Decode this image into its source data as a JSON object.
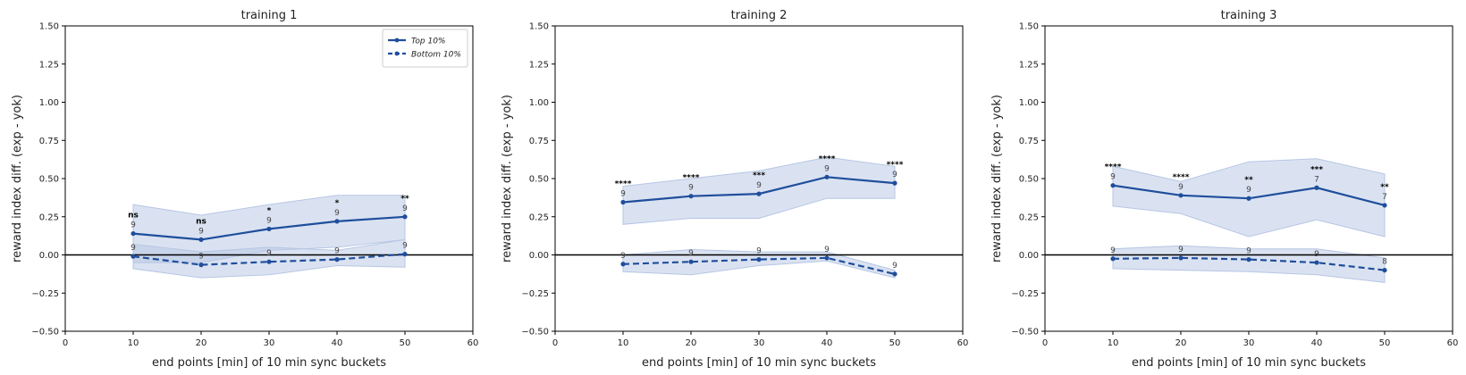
{
  "chart_data": [
    {
      "type": "line",
      "title": "training 1",
      "xlabel": "end points [min] of 10 min sync buckets",
      "ylabel": "reward index diff. (exp - yok)",
      "xlim": [
        0,
        60
      ],
      "ylim": [
        -0.5,
        1.5
      ],
      "xticks": [
        0,
        10,
        20,
        30,
        40,
        50,
        60
      ],
      "yticks": [
        -0.5,
        -0.25,
        0.0,
        0.25,
        0.5,
        0.75,
        1.0,
        1.25,
        1.5
      ],
      "ytick_labels": [
        "−0.50",
        "−0.25",
        "0.00",
        "0.25",
        "0.50",
        "0.75",
        "1.00",
        "1.25",
        "1.50"
      ],
      "legend": "top-right",
      "zero_line": true,
      "series": [
        {
          "name": "Top 10%",
          "style": "solid",
          "x": [
            10,
            20,
            30,
            40,
            50
          ],
          "y": [
            0.14,
            0.1,
            0.17,
            0.22,
            0.25
          ],
          "ci_low": [
            -0.05,
            -0.05,
            0.03,
            0.05,
            0.1
          ],
          "ci_high": [
            0.33,
            0.26,
            0.33,
            0.39,
            0.39
          ],
          "n": [
            "9",
            "9",
            "9",
            "9",
            "9"
          ],
          "sig": [
            "ns",
            "ns",
            "*",
            "*",
            "**"
          ]
        },
        {
          "name": "Bottom 10%",
          "style": "dashed",
          "x": [
            10,
            20,
            30,
            40,
            50
          ],
          "y": [
            -0.01,
            -0.065,
            -0.045,
            -0.03,
            0.005
          ],
          "ci_low": [
            -0.09,
            -0.15,
            -0.13,
            -0.07,
            -0.08
          ],
          "ci_high": [
            0.07,
            0.02,
            0.05,
            0.03,
            0.1
          ],
          "n": [
            "9",
            "9",
            "9",
            "9",
            "9"
          ]
        }
      ]
    },
    {
      "type": "line",
      "title": "training 2",
      "xlabel": "end points [min] of 10 min sync buckets",
      "ylabel": "reward index diff. (exp - yok)",
      "xlim": [
        0,
        60
      ],
      "ylim": [
        -0.5,
        1.5
      ],
      "xticks": [
        0,
        10,
        20,
        30,
        40,
        50,
        60
      ],
      "yticks": [
        -0.5,
        -0.25,
        0.0,
        0.25,
        0.5,
        0.75,
        1.0,
        1.25,
        1.5
      ],
      "ytick_labels": [
        "−0.50",
        "−0.25",
        "0.00",
        "0.25",
        "0.50",
        "0.75",
        "1.00",
        "1.25",
        "1.50"
      ],
      "zero_line": true,
      "series": [
        {
          "style": "solid",
          "x": [
            10,
            20,
            30,
            40,
            50
          ],
          "y": [
            0.345,
            0.385,
            0.4,
            0.51,
            0.47
          ],
          "ci_low": [
            0.2,
            0.24,
            0.24,
            0.37,
            0.37
          ],
          "ci_high": [
            0.45,
            0.5,
            0.55,
            0.64,
            0.58
          ],
          "n": [
            "9",
            "9",
            "9",
            "9",
            "9"
          ],
          "sig": [
            "****",
            "****",
            "***",
            "****",
            "****"
          ]
        },
        {
          "style": "dashed",
          "x": [
            10,
            20,
            30,
            40,
            50
          ],
          "y": [
            -0.06,
            -0.045,
            -0.03,
            -0.02,
            -0.125
          ],
          "ci_low": [
            -0.11,
            -0.13,
            -0.07,
            -0.04,
            -0.15
          ],
          "ci_high": [
            0.0,
            0.035,
            0.02,
            0.02,
            -0.1
          ],
          "n": [
            "9",
            "9",
            "9",
            "9",
            "9"
          ]
        }
      ]
    },
    {
      "type": "line",
      "title": "training 3",
      "xlabel": "end points [min] of 10 min sync buckets",
      "ylabel": "reward index diff. (exp - yok)",
      "xlim": [
        0,
        60
      ],
      "ylim": [
        -0.5,
        1.5
      ],
      "xticks": [
        0,
        10,
        20,
        30,
        40,
        50,
        60
      ],
      "yticks": [
        -0.5,
        -0.25,
        0.0,
        0.25,
        0.5,
        0.75,
        1.0,
        1.25,
        1.5
      ],
      "ytick_labels": [
        "−0.50",
        "−0.25",
        "0.00",
        "0.25",
        "0.50",
        "0.75",
        "1.00",
        "1.25",
        "1.50"
      ],
      "zero_line": true,
      "series": [
        {
          "style": "solid",
          "x": [
            10,
            20,
            30,
            40,
            50
          ],
          "y": [
            0.455,
            0.39,
            0.37,
            0.44,
            0.325
          ],
          "ci_low": [
            0.32,
            0.27,
            0.12,
            0.23,
            0.12
          ],
          "ci_high": [
            0.58,
            0.48,
            0.61,
            0.63,
            0.53
          ],
          "n": [
            "9",
            "9",
            "9",
            "7",
            "7"
          ],
          "sig": [
            "****",
            "****",
            "**",
            "***",
            "**"
          ]
        },
        {
          "style": "dashed",
          "x": [
            10,
            20,
            30,
            40,
            50
          ],
          "y": [
            -0.025,
            -0.02,
            -0.03,
            -0.05,
            -0.1
          ],
          "ci_low": [
            -0.09,
            -0.1,
            -0.11,
            -0.13,
            -0.18
          ],
          "ci_high": [
            0.04,
            0.06,
            0.04,
            0.04,
            -0.02
          ],
          "n": [
            "9",
            "9",
            "9",
            "9",
            "8"
          ]
        }
      ]
    }
  ],
  "colors": {
    "line": "#1f4e9c",
    "band": "#b6c6e4",
    "zero": "#000000"
  }
}
